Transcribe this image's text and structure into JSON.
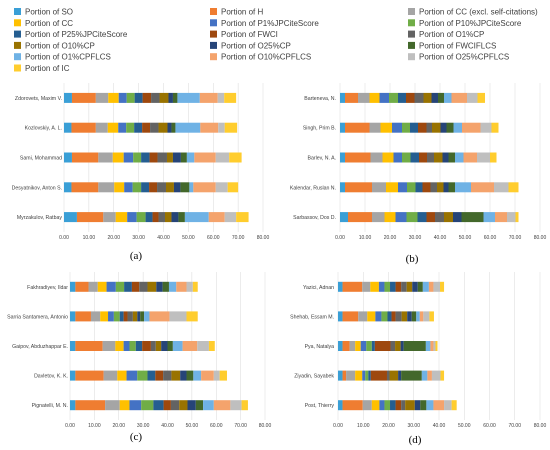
{
  "legend": {
    "items": [
      {
        "label": "Portion of SO",
        "color": "#3a9fd6"
      },
      {
        "label": "Portion of H",
        "color": "#ef7d31"
      },
      {
        "label": "Portion of CC (excl. self-citations)",
        "color": "#a5a5a5"
      },
      {
        "label": "Portion of CC",
        "color": "#ffc000"
      },
      {
        "label": "Portion of P1%JPCiteScore",
        "color": "#4472c4"
      },
      {
        "label": "Portion of P10%JPCiteScore",
        "color": "#70ad47"
      },
      {
        "label": "Portion of P25%JPCiteScore",
        "color": "#255e91"
      },
      {
        "label": "Portion of FWCI",
        "color": "#9e480e"
      },
      {
        "label": "Portion of O1%CP",
        "color": "#636363"
      },
      {
        "label": "Portion of O10%CP",
        "color": "#997300"
      },
      {
        "label": "Portion of O25%CP",
        "color": "#264478"
      },
      {
        "label": "Portion of FWCIFLCS",
        "color": "#43682b"
      },
      {
        "label": "Portion of O1%CPFLCS",
        "color": "#6fb2e5"
      },
      {
        "label": "Portion of O10%CPFLCS",
        "color": "#f4a36c"
      },
      {
        "label": "Portion of O25%CPFLCS",
        "color": "#bfbfbf"
      },
      {
        "label": "Portion of IC",
        "color": "#ffcd2e"
      }
    ]
  },
  "chart_data": [
    {
      "type": "bar",
      "stacked": true,
      "orientation": "horizontal",
      "panel_label": "(a)",
      "categories": [
        "Zdorovets, Maxim V.",
        "Kozlovskiy, A. L.",
        "Sami, Mohammad",
        "Desyatnikov, Anton S.",
        "Myrzakulov, Ratbay"
      ],
      "values": [
        [
          3.2,
          9.6,
          5,
          4.2,
          3.2,
          3.2,
          3.2,
          3.4,
          3.4,
          3.6,
          1.8,
          1.8,
          9,
          7.2,
          2.6,
          4.8
        ],
        [
          3,
          9.8,
          4.8,
          4.2,
          3.2,
          3.2,
          3.2,
          3.2,
          3.4,
          3.6,
          1.6,
          1.6,
          10,
          7.2,
          2.6,
          5
        ],
        [
          3.2,
          10.6,
          5.8,
          4.4,
          3.8,
          3.2,
          3.4,
          3.2,
          3.8,
          2.4,
          3.2,
          2.4,
          3,
          8.6,
          5.4,
          5
        ],
        [
          3,
          10.8,
          6.4,
          4,
          3.4,
          3.4,
          3.2,
          3.2,
          3.6,
          3.2,
          2.6,
          3.6,
          1.6,
          9,
          4.8,
          4.2
        ],
        [
          5.2,
          10.6,
          5,
          4.6,
          3.8,
          3.6,
          2.8,
          2.4,
          2.6,
          2.6,
          2.8,
          2.6,
          9.6,
          6.4,
          4.6,
          5
        ]
      ],
      "xlim": [
        0,
        80
      ],
      "xticks": [
        "0.00",
        "10.00",
        "20.00",
        "30.00",
        "40.00",
        "50.00",
        "60.00",
        "70.00",
        "80.00"
      ]
    },
    {
      "type": "bar",
      "stacked": true,
      "orientation": "horizontal",
      "panel_label": "(b)",
      "categories": [
        "Barteneva, N.",
        "Singh, Prim B.",
        "Barlev, N. A.",
        "Kalendar, Ruslan N.",
        "Sarbassov, Dos D."
      ],
      "values": [
        [
          2,
          5.2,
          4.6,
          4,
          3.8,
          3.6,
          3.2,
          3.4,
          3.6,
          3.2,
          2.6,
          2.4,
          3,
          6.2,
          4.2,
          3
        ],
        [
          2,
          9.8,
          4.4,
          4.6,
          4,
          3.2,
          3.2,
          3.4,
          2.2,
          3.4,
          2.4,
          2.8,
          3.4,
          7.4,
          4.4,
          2.8
        ],
        [
          2,
          10.2,
          4.8,
          4.4,
          3.4,
          3.4,
          3.4,
          3.2,
          2.8,
          3.4,
          2.4,
          2.6,
          3.4,
          5.4,
          5.2,
          2.6
        ],
        [
          2,
          10.8,
          5.6,
          4.8,
          3.6,
          3.4,
          2.8,
          3.2,
          2.6,
          2.6,
          2,
          2.6,
          6.4,
          9.2,
          5.8,
          4
        ],
        [
          3.2,
          9.6,
          5,
          4.4,
          4.4,
          4.4,
          3.6,
          3.4,
          3.6,
          3.6,
          3.4,
          8.8,
          4.6,
          4.8,
          3.4,
          1.2
        ]
      ],
      "xlim": [
        0,
        80
      ],
      "xticks": [
        "0.00",
        "10.00",
        "20.00",
        "30.00",
        "40.00",
        "50.00",
        "60.00",
        "70.00",
        "80.00"
      ]
    },
    {
      "type": "bar",
      "stacked": true,
      "orientation": "horizontal",
      "panel_label": "(c)",
      "categories": [
        "Fakhradiyev, Ildar",
        "Sarria Santamera, Antonio",
        "Gaipov, Abduzhappar E.",
        "Davletov, K. K.",
        "Pignatelli, M. N."
      ],
      "values": [
        [
          2.2,
          5.4,
          3.8,
          3.6,
          3.8,
          3.4,
          3.2,
          3,
          3.4,
          3.6,
          2.6,
          2.6,
          3,
          4.2,
          2.6,
          2
        ],
        [
          2.2,
          6.4,
          3.8,
          3.2,
          2.4,
          2.4,
          1.6,
          1.6,
          2.2,
          1.8,
          1.2,
          1.6,
          2.2,
          8.2,
          7,
          4.6
        ],
        [
          2.2,
          11.2,
          5.2,
          3.4,
          2.4,
          2.6,
          2.6,
          3.6,
          2,
          2.2,
          2.6,
          2.2,
          4,
          6,
          4.8,
          2.4
        ],
        [
          2.2,
          11.6,
          5.6,
          3.8,
          4.4,
          4.2,
          3.2,
          3.2,
          3.4,
          3.6,
          2.6,
          2.8,
          3.2,
          5.2,
          2.4,
          3
        ],
        [
          2.2,
          12.2,
          6,
          4,
          4.8,
          5,
          4.2,
          3,
          3.4,
          3.4,
          3.4,
          3,
          4.4,
          6.8,
          4.6,
          2.6
        ]
      ],
      "xlim": [
        0,
        80
      ],
      "xticks": [
        "0.00",
        "10.00",
        "20.00",
        "30.00",
        "40.00",
        "50.00",
        "60.00",
        "70.00",
        "80.00"
      ]
    },
    {
      "type": "bar",
      "stacked": true,
      "orientation": "horizontal",
      "panel_label": "(d)",
      "categories": [
        "Yazici, Adnan",
        "Shehab, Essam M.",
        "Pya, Natalya",
        "Ziyadin, Sayabek",
        "Post, Thierry"
      ],
      "values": [
        [
          1.8,
          7.8,
          3.2,
          3.4,
          2.2,
          2.2,
          2.2,
          2.2,
          2.2,
          2.2,
          2.2,
          2,
          2.4,
          1.8,
          2.6,
          1.6
        ],
        [
          1.8,
          6.2,
          3.6,
          3.2,
          2.4,
          2.4,
          1.6,
          1.6,
          2.4,
          2.2,
          1.8,
          1.8,
          1.4,
          1.4,
          2.4,
          1.8
        ],
        [
          1.8,
          2.8,
          2.2,
          2.2,
          2.2,
          2.2,
          1.2,
          6.2,
          1.8,
          2.2,
          1.2,
          8.8,
          1.8,
          1.2,
          0.8,
          0.8
        ],
        [
          1.8,
          1.4,
          3.6,
          2.8,
          1.2,
          1.2,
          1,
          6.4,
          1,
          3.4,
          1.2,
          8.2,
          2.2,
          1.8,
          3.4,
          1.4
        ],
        [
          1.8,
          8,
          3.6,
          3,
          2,
          2.2,
          2.2,
          2.2,
          1.6,
          3.8,
          2.2,
          2.4,
          2.8,
          4.2,
          3,
          2
        ]
      ],
      "xlim": [
        0,
        80
      ],
      "xticks": [
        "0.00",
        "10.00",
        "20.00",
        "30.00",
        "40.00",
        "50.00",
        "60.00",
        "70.00",
        "80.00"
      ]
    }
  ]
}
